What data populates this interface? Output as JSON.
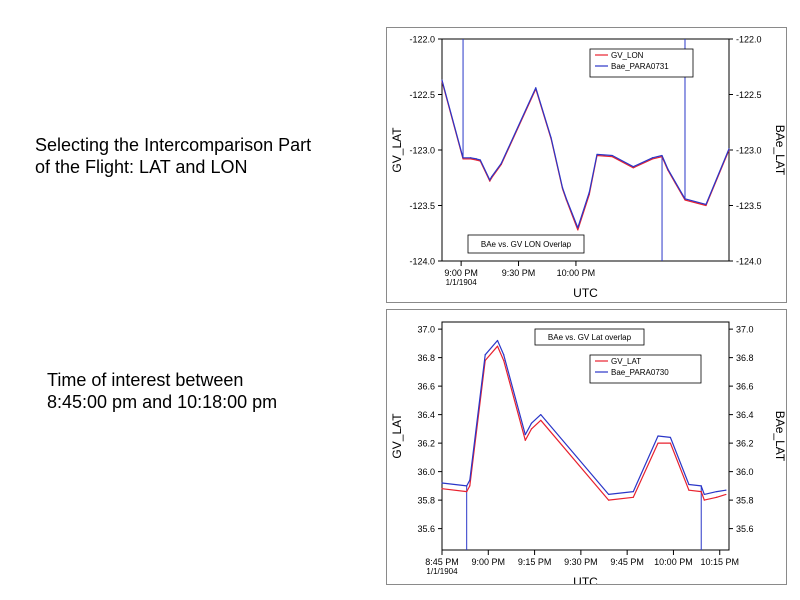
{
  "captions": {
    "top_line1": "Selecting the Intercomparison Part",
    "top_line2": "of the Flight: LAT and LON",
    "bottom_line1": "Time of interest between",
    "bottom_line2": "8:45:00 pm and 10:18:00 pm"
  },
  "chart_data": [
    {
      "type": "line",
      "title": "",
      "annotation": "BAe vs. GV LON Overlap",
      "xlabel": "UTC",
      "ylabel_left": "GV_LAT",
      "ylabel_right": "BAe_LAT",
      "x_unit": "minutes after 8:45 PM",
      "xlim": [
        5,
        155
      ],
      "x_ticks": [
        {
          "x": 15,
          "label": "9:00 PM",
          "sublabel": "1/1/1904"
        },
        {
          "x": 45,
          "label": "9:30 PM",
          "sublabel": ""
        },
        {
          "x": 75,
          "label": "10:00 PM",
          "sublabel": ""
        }
      ],
      "ylim": [
        -124.0,
        -122.0
      ],
      "y_ticks": [
        -122.0,
        -122.5,
        -123.0,
        -123.5,
        -124.0
      ],
      "y_tick_labels": [
        "-122.0",
        "-122.5",
        "-123.0",
        "-123.5",
        "-124.0"
      ],
      "grid": false,
      "legend_position": "top-right",
      "series": [
        {
          "name": "GV_LON",
          "color": "#e8212e",
          "x": [
            5,
            16,
            20,
            23,
            25,
            30,
            31,
            36,
            54,
            62,
            68,
            70,
            76,
            82,
            86,
            94,
            105,
            115,
            120,
            123,
            127,
            132,
            143,
            155
          ],
          "y": [
            -122.38,
            -123.08,
            -123.08,
            -123.09,
            -123.1,
            -123.28,
            -123.25,
            -123.13,
            -122.45,
            -122.9,
            -123.35,
            -123.45,
            -123.72,
            -123.4,
            -123.05,
            -123.06,
            -123.16,
            -123.08,
            -123.06,
            -123.18,
            -123.3,
            -123.45,
            -123.5,
            -123.0
          ]
        },
        {
          "name": "Bae_PARA0731",
          "color": "#2a36c8",
          "x": [
            5,
            16,
            20,
            23,
            25,
            30,
            31,
            36,
            54,
            62,
            68,
            70,
            76,
            82,
            86,
            94,
            105,
            115,
            120,
            123,
            127,
            132,
            143,
            155
          ],
          "y": [
            -122.37,
            -123.07,
            -123.07,
            -123.08,
            -123.09,
            -123.27,
            -123.24,
            -123.12,
            -122.44,
            -122.89,
            -123.34,
            -123.44,
            -123.7,
            -123.38,
            -123.04,
            -123.05,
            -123.15,
            -123.07,
            -123.05,
            -123.17,
            -123.29,
            -123.44,
            -123.49,
            -122.99
          ]
        }
      ],
      "vertical_lines": [
        {
          "x": 16,
          "from": -123.08,
          "to": -122.0,
          "color": "#2a36c8"
        },
        {
          "x": 120,
          "from": -123.06,
          "to": -124.0,
          "color": "#2a36c8"
        },
        {
          "x": 132,
          "from": -123.45,
          "to": -122.0,
          "color": "#2a36c8"
        }
      ]
    },
    {
      "type": "line",
      "title": "",
      "annotation": "BAe vs. GV Lat overlap",
      "xlabel": "UTC",
      "ylabel_left": "GV_LAT",
      "ylabel_right": "BAe_LAT",
      "x_unit": "minutes after 8:45 PM",
      "xlim": [
        0,
        93
      ],
      "x_ticks": [
        {
          "x": 0,
          "label": "8:45 PM",
          "sublabel": "1/1/1904"
        },
        {
          "x": 15,
          "label": "9:00 PM",
          "sublabel": ""
        },
        {
          "x": 30,
          "label": "9:15 PM",
          "sublabel": ""
        },
        {
          "x": 45,
          "label": "9:30 PM",
          "sublabel": ""
        },
        {
          "x": 60,
          "label": "9:45 PM",
          "sublabel": ""
        },
        {
          "x": 75,
          "label": "10:00 PM",
          "sublabel": ""
        },
        {
          "x": 90,
          "label": "10:15 PM",
          "sublabel": ""
        }
      ],
      "ylim": [
        35.45,
        37.05
      ],
      "y_ticks": [
        35.6,
        35.8,
        36.0,
        36.2,
        36.4,
        36.6,
        36.8,
        37.0
      ],
      "y_tick_labels": [
        "35.6",
        "35.8",
        "36.0",
        "36.2",
        "36.4",
        "36.6",
        "36.8",
        "37.0"
      ],
      "grid": false,
      "legend_position": "top-right",
      "series": [
        {
          "name": "GV_LAT",
          "color": "#e8212e",
          "x": [
            0,
            8,
            9,
            14,
            18,
            20,
            27,
            29,
            32,
            54,
            62,
            70,
            74,
            80,
            84,
            85,
            89,
            92
          ],
          "y": [
            35.88,
            35.86,
            35.9,
            36.78,
            36.88,
            36.78,
            36.22,
            36.3,
            36.36,
            35.8,
            35.82,
            36.2,
            36.2,
            35.87,
            35.86,
            35.8,
            35.82,
            35.84
          ]
        },
        {
          "name": "Bae_PARA0730",
          "color": "#2a36c8",
          "x": [
            0,
            8,
            9,
            14,
            18,
            20,
            27,
            29,
            32,
            54,
            62,
            70,
            74,
            80,
            84,
            85,
            89,
            92
          ],
          "y": [
            35.92,
            35.9,
            35.94,
            36.82,
            36.92,
            36.82,
            36.26,
            36.34,
            36.4,
            35.84,
            35.86,
            36.25,
            36.24,
            35.91,
            35.9,
            35.84,
            35.86,
            35.87
          ]
        }
      ],
      "vertical_lines": [
        {
          "x": 8,
          "from": 35.9,
          "to": 35.45,
          "color": "#2a36c8"
        },
        {
          "x": 84,
          "from": 35.9,
          "to": 35.45,
          "color": "#2a36c8"
        }
      ]
    }
  ]
}
